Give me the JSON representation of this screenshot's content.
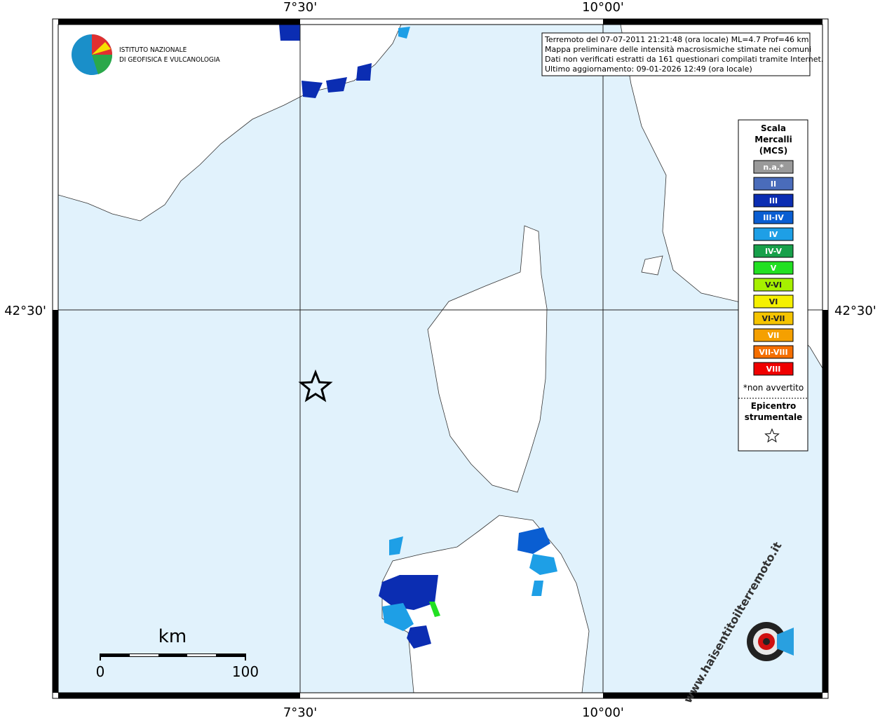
{
  "map": {
    "lon_labels": [
      "7°30'",
      "10°00'"
    ],
    "lat_labels": [
      "42°30'"
    ]
  },
  "info": {
    "lines": [
      "Terremoto del 07-07-2011 21:21:48 (ora locale) ML=4.7 Prof=46 km",
      "Mappa preliminare delle intensità macrosismiche stimate nei comuni",
      "Dati non verificati estratti da 161 questionari compilati tramite Internet.",
      "Ultimo aggiornamento: 09-01-2026 12:49 (ora locale)"
    ]
  },
  "logo": {
    "lines": [
      "ISTITUTO NAZIONALE",
      "DI GEOFISICA E VULCANOLOGIA"
    ]
  },
  "legend": {
    "title": [
      "Scala",
      "Mercalli",
      "(MCS)"
    ],
    "items": [
      {
        "label": "n.a.*",
        "color": "#9a9a9a"
      },
      {
        "label": "II",
        "color": "#4a6cba"
      },
      {
        "label": "III",
        "color": "#0b2db2"
      },
      {
        "label": "III-IV",
        "color": "#0a5ed2"
      },
      {
        "label": "IV",
        "color": "#1e9fe6"
      },
      {
        "label": "IV-V",
        "color": "#17a04a"
      },
      {
        "label": "V",
        "color": "#22e022"
      },
      {
        "label": "V-VI",
        "color": "#a6f000"
      },
      {
        "label": "VI",
        "color": "#f5f000"
      },
      {
        "label": "VI-VII",
        "color": "#f5c400"
      },
      {
        "label": "VII",
        "color": "#f5a000"
      },
      {
        "label": "VII-VIII",
        "color": "#f56e00"
      },
      {
        "label": "VIII",
        "color": "#f00000"
      }
    ],
    "note": "*non avvertito",
    "epicenter": [
      "Epicentro",
      "strumentale"
    ]
  },
  "scale_bar": {
    "unit": "km",
    "labels": [
      "0",
      "100"
    ]
  },
  "watermark": "www.haisentitoilterremoto.it"
}
